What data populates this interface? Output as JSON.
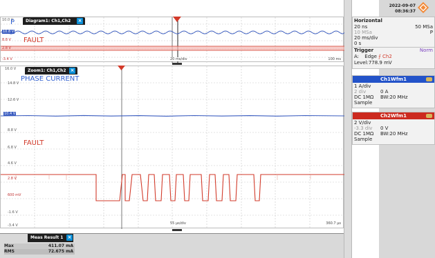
{
  "datetime": {
    "date": "2022-09-07",
    "time": "08:36:37"
  },
  "diagram": {
    "tab_label": "Diagram1: Ch1,Ch2",
    "label_p": "P",
    "label_fault": "FAULT",
    "y_labels": [
      "10.0 V",
      "8.8 V",
      "2.8 V",
      "-3.4 V"
    ],
    "y_blue": "10.8 V",
    "x_label": "20 ms/div",
    "x_right": "100 ms"
  },
  "zoom": {
    "tab_label": "Zoom1: Ch1,Ch2",
    "label_phase": "PHASE CURRENT",
    "label_fault": "FAULT",
    "y_labels": [
      "16.0 V",
      "14.8 V",
      "12.6 V",
      "10.4 V",
      "8.8 V",
      "6.8 V",
      "4.6 V",
      "2.8 V",
      "600 mV",
      "-1.6 V",
      "-3.4 V"
    ],
    "x_label": "55 µs/div",
    "x_right": "360.7 µs"
  },
  "horizontal": {
    "title": "Horizontal",
    "l1": "20 ns",
    "r1": "50 MSa",
    "l2": "10 MSa",
    "r2": "P",
    "l3": "20 ms/div",
    "l4": "0 s"
  },
  "trigger": {
    "title": "Trigger",
    "mode": "Norm",
    "line1a": "A:",
    "line1b": "Edge",
    "line1c": "Ch2",
    "level": "Level:778.9 mV"
  },
  "ch1": {
    "title": "Ch1Wfm1",
    "scale": "1 A/div",
    "pos": "2 div",
    "offset": "0 A",
    "coupling": "DC 1MΩ",
    "bw": "BW:20 MHz",
    "mode": "Sample"
  },
  "ch2": {
    "title": "Ch2Wfm1",
    "scale": "2 V/div",
    "pos": "-3.3 div",
    "offset": "0 V",
    "coupling": "DC 1MΩ",
    "bw": "BW:20 MHz",
    "mode": "Sample"
  },
  "meas": {
    "tab_label": "Meas Result 1",
    "rows": [
      {
        "name": "Max",
        "value": "411.07 mA"
      },
      {
        "name": "RMS",
        "value": "72.675 mA"
      }
    ]
  },
  "colors": {
    "ch1": "#3a5cc0",
    "ch2": "#d23a2a",
    "ch1_head": "#2353c9",
    "ch2_head": "#cc2a1f"
  }
}
